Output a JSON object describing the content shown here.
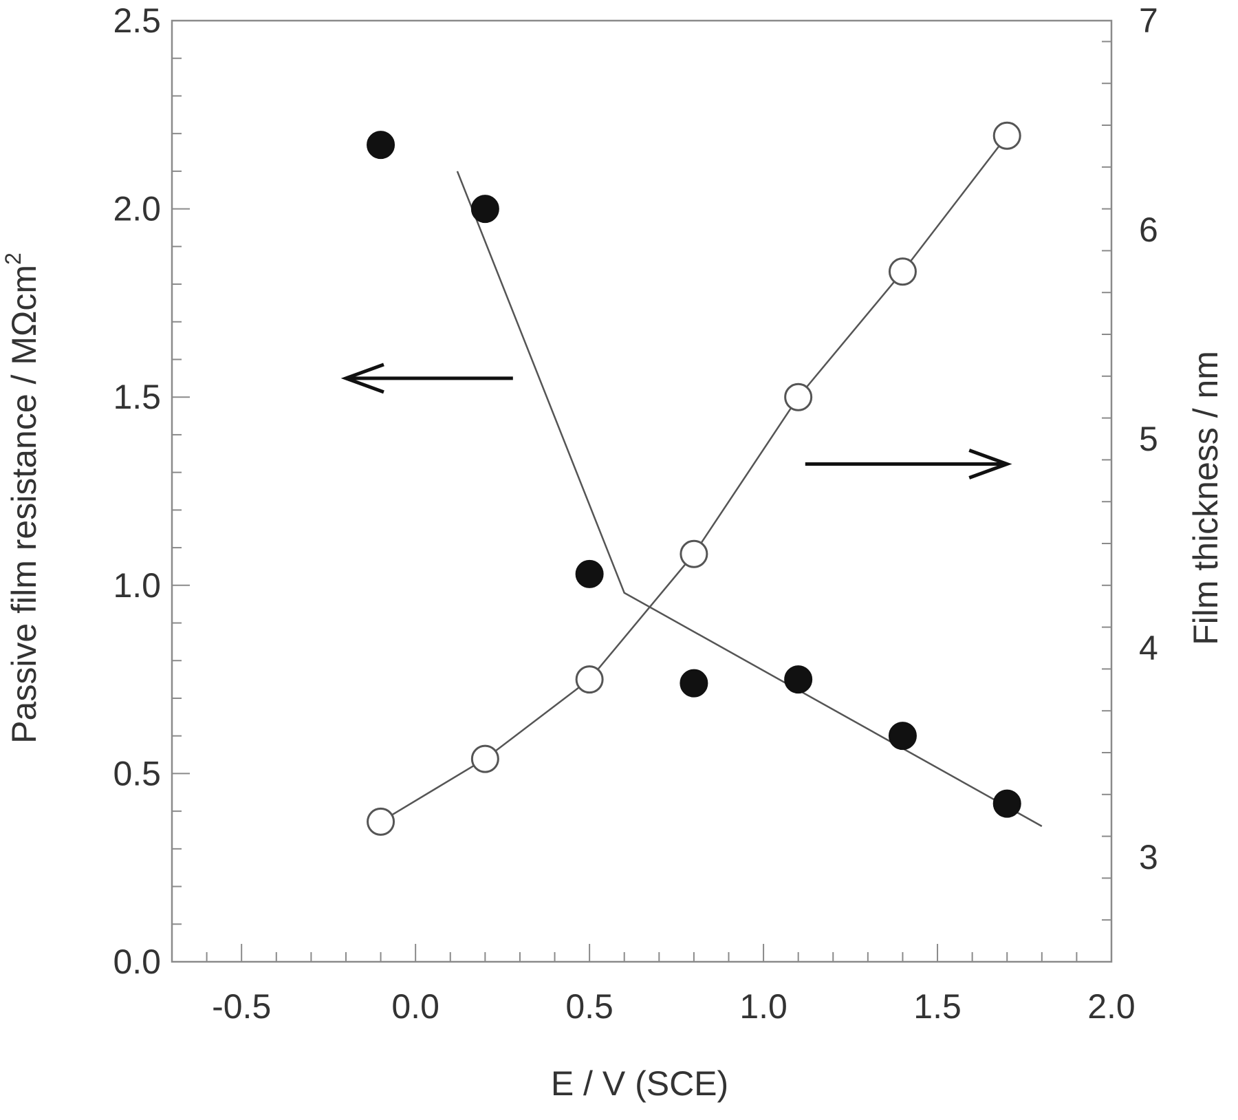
{
  "chart_data": {
    "type": "scatter",
    "xlabel": "E / V (SCE)",
    "ylabel": "Passive film resistance / MΩcm",
    "ylabel_superscript": "2",
    "y2label": "Film thickness / nm",
    "xlim": [
      -0.7,
      2.0
    ],
    "ylim": [
      0.0,
      2.5
    ],
    "y2lim": [
      2.5,
      7.0
    ],
    "x_ticks": [
      "-0.5",
      "0.0",
      "0.5",
      "1.0",
      "1.5",
      "2.0"
    ],
    "y_ticks": [
      "0.0",
      "0.5",
      "1.0",
      "1.5",
      "2.0",
      "2.5"
    ],
    "y2_ticks": [
      "3",
      "4",
      "5",
      "6",
      "7"
    ],
    "grid": false,
    "series": [
      {
        "axis": "left",
        "marker": "filled-circle",
        "x": [
          -0.1,
          0.2,
          0.5,
          0.8,
          1.1,
          1.4,
          1.7
        ],
        "y": [
          2.17,
          2.0,
          1.03,
          0.74,
          0.75,
          0.6,
          0.42
        ]
      },
      {
        "axis": "right",
        "marker": "open-circle",
        "x": [
          -0.1,
          0.2,
          0.5,
          0.8,
          1.1,
          1.4,
          1.7
        ],
        "y": [
          3.17,
          3.47,
          3.85,
          4.45,
          5.2,
          5.8,
          6.45
        ]
      }
    ],
    "fit_lines": [
      {
        "axis": "left",
        "x": [
          0.12,
          0.6,
          1.8
        ],
        "y": [
          2.1,
          0.98,
          0.36
        ]
      },
      {
        "axis": "right",
        "x": [
          -0.1,
          0.2,
          0.5,
          0.8,
          1.1,
          1.4,
          1.7
        ],
        "y": [
          3.17,
          3.47,
          3.85,
          4.45,
          5.2,
          5.8,
          6.45
        ]
      }
    ],
    "annotations": [
      {
        "type": "arrow",
        "direction": "left",
        "meaning": "filled-series-reads-left-axis"
      },
      {
        "type": "arrow",
        "direction": "right",
        "meaning": "open-series-reads-right-axis"
      }
    ]
  }
}
